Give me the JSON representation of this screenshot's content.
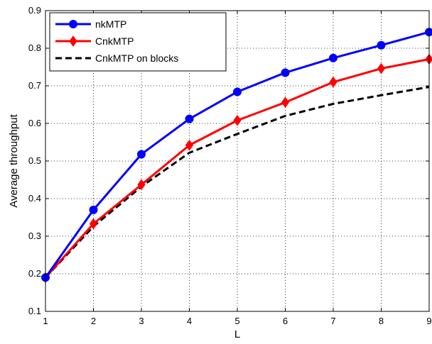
{
  "chart_data": {
    "type": "line",
    "title": "",
    "xlabel": "L",
    "ylabel": "Average throughput",
    "x": [
      1,
      2,
      3,
      4,
      5,
      6,
      7,
      8,
      9
    ],
    "xlim": [
      1,
      9
    ],
    "ylim": [
      0.1,
      0.9
    ],
    "xticks": [
      "1",
      "2",
      "3",
      "4",
      "5",
      "6",
      "7",
      "8",
      "9"
    ],
    "yticks": [
      "0.1",
      "0.2",
      "0.3",
      "0.4",
      "0.5",
      "0.6",
      "0.7",
      "0.8",
      "0.9"
    ],
    "grid": true,
    "legend_position": "top-left",
    "series": [
      {
        "name": "nkMTP",
        "color": "#0000ff",
        "marker": "circle",
        "line_style": "solid",
        "values": [
          0.19,
          0.37,
          0.518,
          0.612,
          0.684,
          0.735,
          0.774,
          0.808,
          0.843
        ]
      },
      {
        "name": "CnkMTP",
        "color": "#ff0000",
        "marker": "diamond",
        "line_style": "solid",
        "values": [
          0.19,
          0.333,
          0.437,
          0.542,
          0.608,
          0.656,
          0.71,
          0.746,
          0.771
        ]
      },
      {
        "name": "CnkMTP on blocks",
        "color": "#000000",
        "marker": "none",
        "line_style": "dashed",
        "values": [
          0.19,
          0.326,
          0.432,
          0.522,
          0.572,
          0.62,
          0.652,
          0.675,
          0.697
        ]
      }
    ]
  }
}
